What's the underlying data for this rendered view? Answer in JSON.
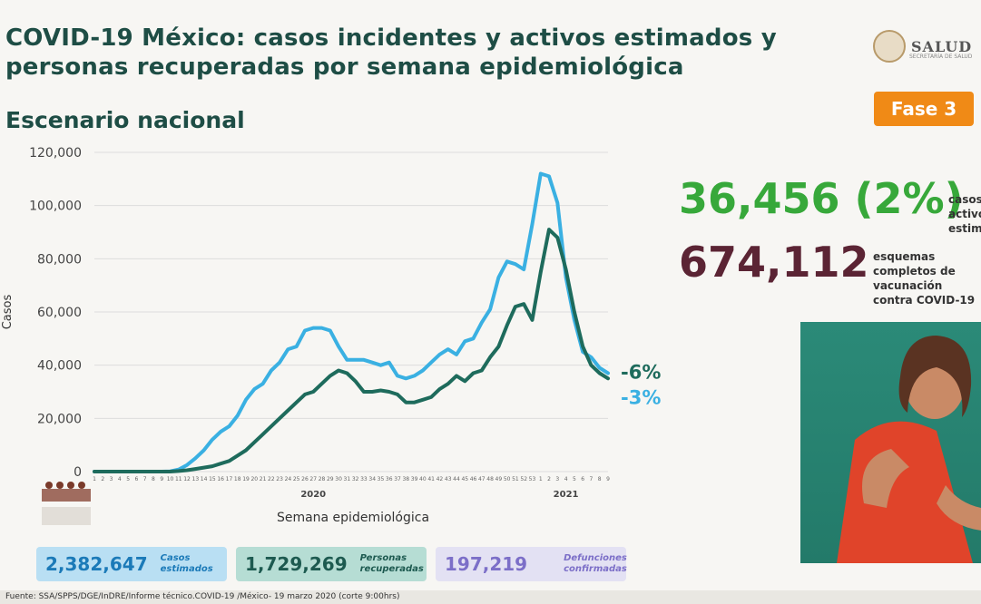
{
  "title": "COVID-19 México: casos incidentes y activos estimados y personas recuperadas por semana epidemiológica",
  "subtitle": "Escenario nacional",
  "logo": {
    "name": "SALUD",
    "subtext": "SECRETARÍA DE SALUD"
  },
  "phase_badge": "Fase 3",
  "stats": [
    {
      "value": "36,456 (2%)",
      "label": "casos activos estimados",
      "color": "#37a83a"
    },
    {
      "value": "674,112",
      "label": "esquemas completos de vacunación contra COVID-19",
      "color": "#5b2434"
    }
  ],
  "summary_boxes": [
    {
      "value": "2,382,647",
      "label": "Casos estimados",
      "bg": "#b9dff3",
      "fg": "#1b7ab8"
    },
    {
      "value": "1,729,269",
      "label": "Personas recuperadas",
      "bg": "#b6ddd4",
      "fg": "#1d5a50"
    },
    {
      "value": "197,219",
      "label": "Defunciones confirmadas",
      "bg": "#e3e1f3",
      "fg": "#7c6fc8"
    }
  ],
  "source": "Fuente: SSA/SPPS/DGE/InDRE/Informe técnico.COVID-19 /México- 19 marzo 2020 (corte 9:00hrs)",
  "chart_data": {
    "type": "line",
    "title": "casos incidentes y activos estimados y personas recuperadas por semana epidemiológica",
    "xlabel": "Semana epidemiológica",
    "ylabel": "Casos",
    "ylim": [
      0,
      120000
    ],
    "yticks": [
      0,
      20000,
      40000,
      60000,
      80000,
      100000,
      120000
    ],
    "ytick_labels": [
      "0",
      "20,000",
      "40,000",
      "60,000",
      "80,000",
      "100,000",
      "120,000"
    ],
    "year_labels": [
      {
        "label": "2020",
        "index": 26
      },
      {
        "label": "2021",
        "index": 56
      }
    ],
    "x": [
      "1",
      "2",
      "3",
      "4",
      "5",
      "6",
      "7",
      "8",
      "9",
      "10",
      "11",
      "12",
      "13",
      "14",
      "15",
      "16",
      "17",
      "18",
      "19",
      "20",
      "21",
      "22",
      "23",
      "24",
      "25",
      "26",
      "27",
      "28",
      "29",
      "30",
      "31",
      "32",
      "33",
      "34",
      "35",
      "36",
      "37",
      "38",
      "39",
      "40",
      "41",
      "42",
      "43",
      "44",
      "45",
      "46",
      "47",
      "48",
      "49",
      "50",
      "51",
      "52",
      "53",
      "1",
      "2",
      "3",
      "4",
      "5",
      "6",
      "7",
      "8",
      "9"
    ],
    "series": [
      {
        "name": "Casos estimados",
        "color": "#3ab0e2",
        "values": [
          0,
          0,
          0,
          0,
          0,
          0,
          0,
          0,
          0,
          100,
          800,
          2500,
          5000,
          8000,
          12000,
          15000,
          17000,
          21000,
          27000,
          31000,
          33000,
          38000,
          41000,
          46000,
          47000,
          53000,
          54000,
          54000,
          53000,
          47000,
          42000,
          42000,
          42000,
          41000,
          40000,
          41000,
          36000,
          35000,
          36000,
          38000,
          41000,
          44000,
          46000,
          44000,
          49000,
          50000,
          56000,
          61000,
          73000,
          79000,
          78000,
          76000,
          93000,
          112000,
          111000,
          101000,
          73000,
          57000,
          45000,
          43000,
          39000,
          37000
        ],
        "end_label": "-3%"
      },
      {
        "name": "Personas recuperadas / activos",
        "color": "#1e6b5c",
        "values": [
          0,
          0,
          0,
          0,
          0,
          0,
          0,
          0,
          0,
          0,
          200,
          500,
          1000,
          1500,
          2000,
          3000,
          4000,
          6000,
          8000,
          11000,
          14000,
          17000,
          20000,
          23000,
          26000,
          29000,
          30000,
          33000,
          36000,
          38000,
          37000,
          34000,
          30000,
          30000,
          30500,
          30000,
          29000,
          26000,
          26000,
          27000,
          28000,
          31000,
          33000,
          36000,
          34000,
          37000,
          38000,
          43000,
          47000,
          55000,
          62000,
          63000,
          57000,
          75000,
          91000,
          88000,
          76000,
          60000,
          47000,
          40000,
          37000,
          35000
        ],
        "end_label": "-6%"
      }
    ]
  }
}
